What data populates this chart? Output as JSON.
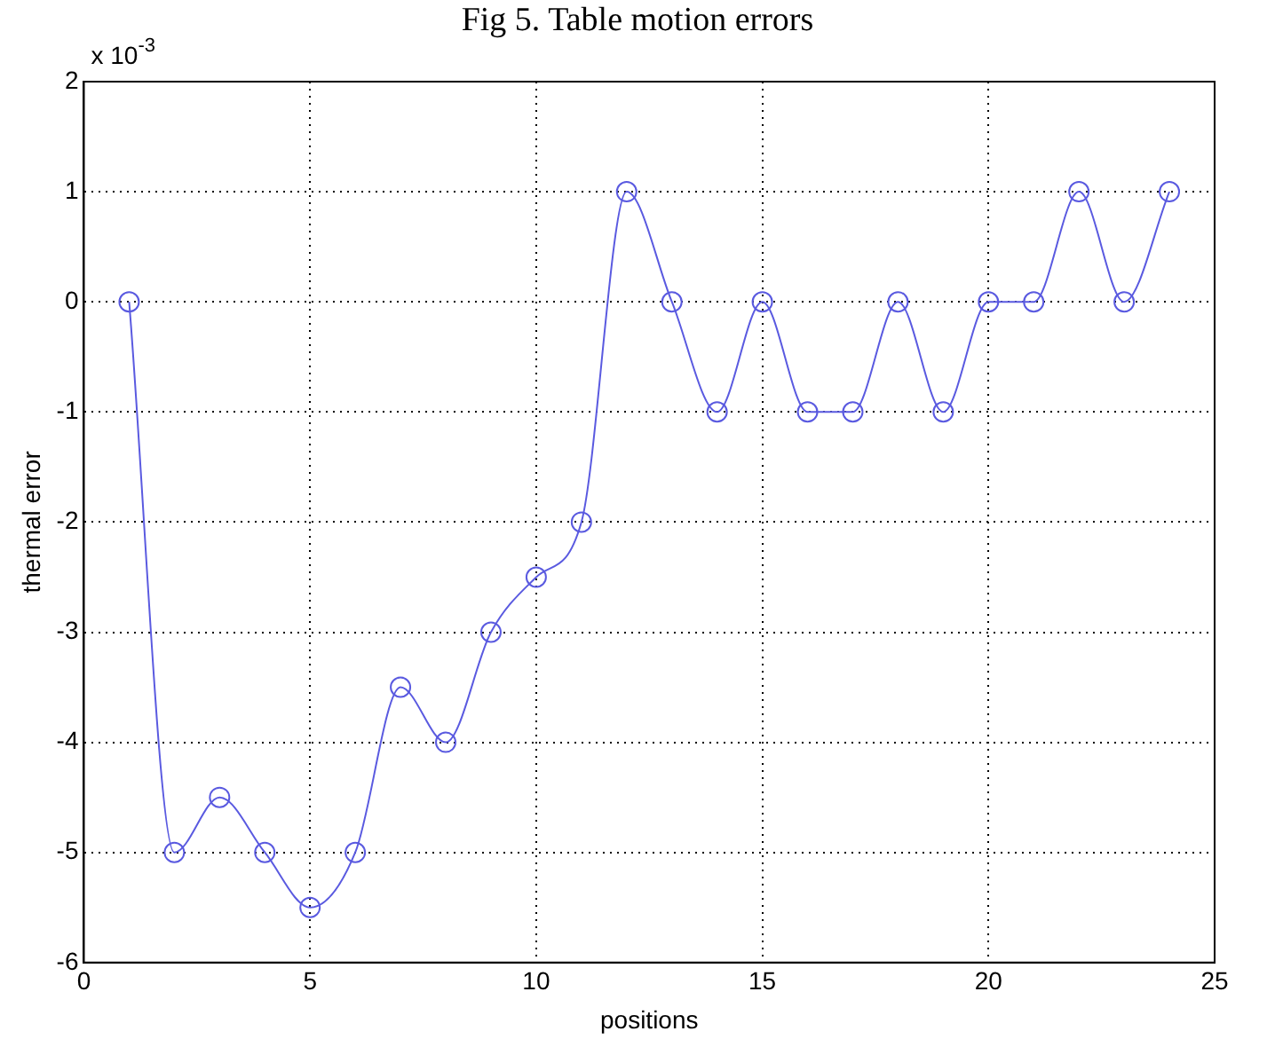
{
  "chart_data": {
    "type": "line",
    "title": "Fig 5. Table motion errors",
    "xlabel": "positions",
    "ylabel": "thermal error",
    "annotations": [
      "x 10$^{-3}$"
    ],
    "x": [
      1,
      2,
      3,
      4,
      5,
      6,
      7,
      8,
      9,
      10,
      11,
      12,
      13,
      14,
      15,
      16,
      17,
      18,
      19,
      20,
      21,
      22,
      23,
      24
    ],
    "series": [
      {
        "color": "#5a5ae0",
        "values": [
          0,
          -5,
          -4.5,
          -5,
          -5.5,
          -5,
          -3.5,
          -4,
          -3,
          -2.5,
          -2,
          1,
          0,
          -1,
          0,
          -1,
          -1,
          0,
          -1,
          0,
          0,
          1,
          0,
          1
        ]
      }
    ],
    "xlim": [
      0,
      25
    ],
    "xticks": [
      0,
      5,
      10,
      15,
      20,
      25
    ],
    "ylim": [
      -6,
      2
    ],
    "yticks": [
      -6,
      -5,
      -4,
      -3,
      -2,
      -1,
      0,
      1,
      2
    ],
    "grid": true,
    "legend": false,
    "marker": "circle",
    "line_style": "solid"
  }
}
